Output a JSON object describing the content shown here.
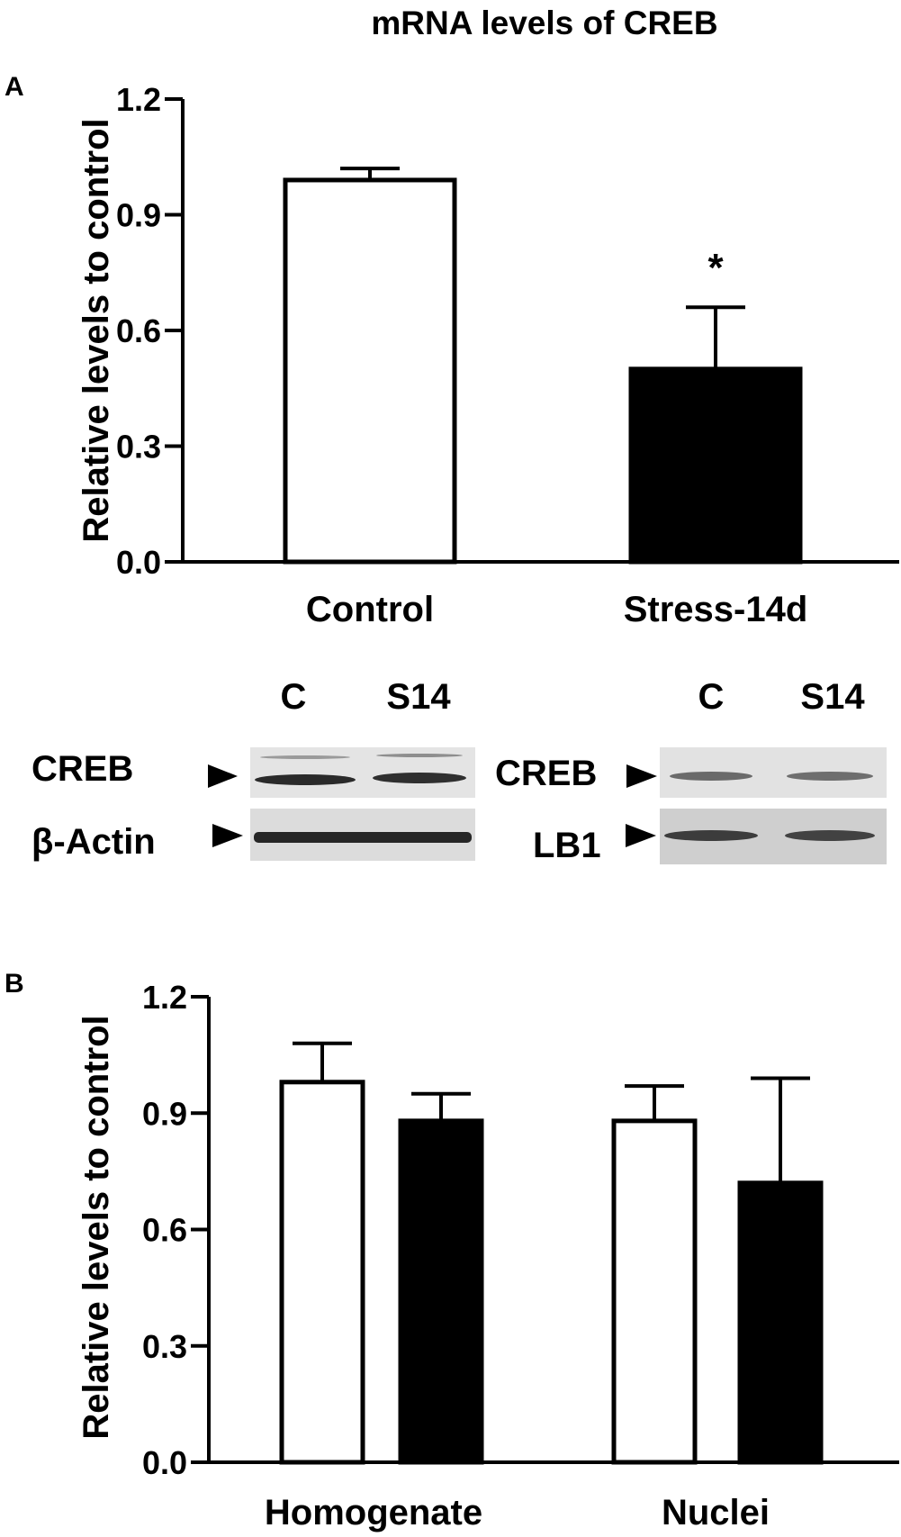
{
  "figure": {
    "title": "mRNA levels of CREB",
    "panel_letters": [
      "A",
      "B"
    ],
    "colors": {
      "control_fill": "#ffffff",
      "stress_fill": "#000000",
      "stroke": "#000000",
      "blot_bg_light": "#e4e4e4",
      "blot_bg_dark": "#d0d0d0",
      "band": "#2a2a2a"
    }
  },
  "chart_data": [
    {
      "type": "bar",
      "panel": "A",
      "title": "mRNA levels of CREB",
      "ylabel": "Relative levels to control",
      "xlabel": "",
      "ylim": [
        0,
        1.2
      ],
      "yticks": [
        0.0,
        0.3,
        0.6,
        0.9,
        1.2
      ],
      "ytick_labels": [
        "0.0",
        "0.3",
        "0.6",
        "0.9",
        "1.2"
      ],
      "categories": [
        "Control",
        "Stress-14d"
      ],
      "values": [
        0.99,
        0.5
      ],
      "errors": [
        0.03,
        0.16
      ],
      "fills": [
        "#ffffff",
        "#000000"
      ],
      "annotations": [
        {
          "category": "Stress-14d",
          "text": "*"
        }
      ],
      "grid": false,
      "legend": "none"
    },
    {
      "type": "bar",
      "panel": "B",
      "ylabel": "Relative levels to control",
      "xlabel": "",
      "ylim": [
        0,
        1.2
      ],
      "yticks": [
        0.0,
        0.3,
        0.6,
        0.9,
        1.2
      ],
      "ytick_labels": [
        "0.0",
        "0.3",
        "0.6",
        "0.9",
        "1.2"
      ],
      "categories": [
        "Homogenate",
        "Nuclei"
      ],
      "series": [
        {
          "values": [
            0.98,
            0.88
          ],
          "errors": [
            0.1,
            0.09
          ],
          "fill": "#ffffff"
        },
        {
          "values": [
            0.88,
            0.72
          ],
          "errors": [
            0.07,
            0.27
          ],
          "fill": "#000000"
        }
      ],
      "grid": false,
      "legend": "none"
    }
  ],
  "western_blot": {
    "left": {
      "lane_labels": [
        "C",
        "S14"
      ],
      "rows": [
        {
          "label": "CREB"
        },
        {
          "label": "β-Actin"
        }
      ]
    },
    "right": {
      "lane_labels": [
        "C",
        "S14"
      ],
      "rows": [
        {
          "label": "CREB"
        },
        {
          "label": "LB1"
        }
      ]
    }
  }
}
